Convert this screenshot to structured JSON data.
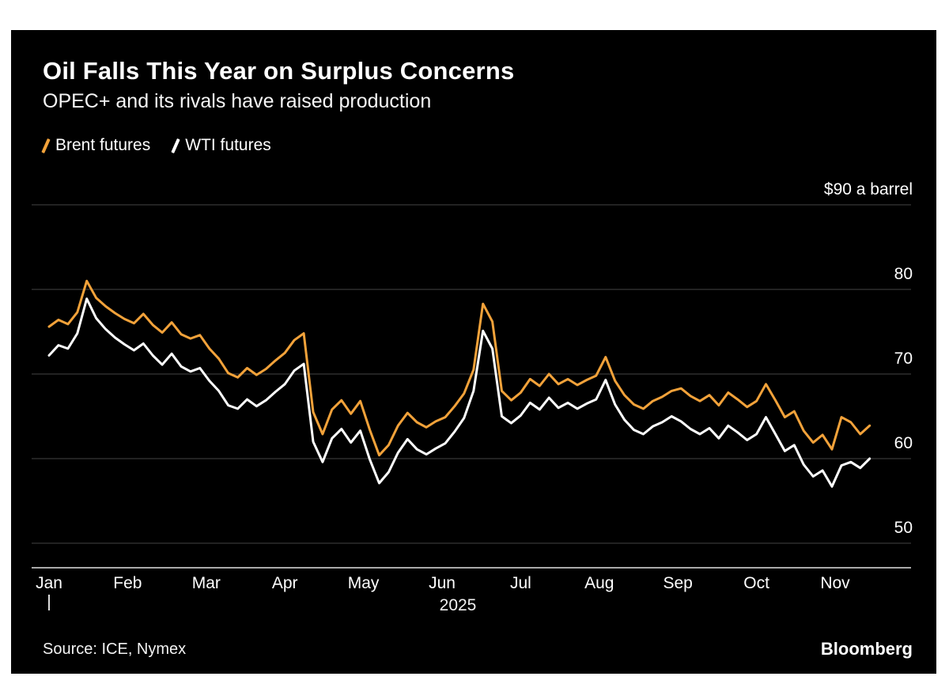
{
  "page": {
    "background": "#ffffff",
    "card_background": "#000000",
    "text_color": "#ffffff"
  },
  "header": {
    "title": "Oil Falls This Year on Surplus Concerns",
    "subtitle": "OPEC+ and its rivals have raised production"
  },
  "legend": {
    "items": [
      {
        "id": "brent",
        "label": "Brent futures",
        "color": "#F2A23A",
        "icon": "slash-line-icon"
      },
      {
        "id": "wti",
        "label": "WTI futures",
        "color": "#FFFFFF",
        "icon": "slash-line-icon"
      }
    ]
  },
  "footer": {
    "source": "Source: ICE, Nymex",
    "brand": "Bloomberg"
  },
  "chart_data": {
    "type": "line",
    "title": "Oil Falls This Year on Surplus Concerns",
    "subtitle": "OPEC+ and its rivals have raised production",
    "legend_position": "top-left",
    "style": {
      "background": "#000000",
      "grid_color": "#454545",
      "axis_color": "#a9a9a9",
      "label_color": "#ffffff"
    },
    "x_axis": {
      "tick_labels": [
        "Jan",
        "Feb",
        "Mar",
        "Apr",
        "May",
        "Jun",
        "Jul",
        "Aug",
        "Sep",
        "Oct",
        "Nov"
      ],
      "tick_positions_months": [
        0,
        1,
        2,
        3,
        4,
        5,
        6,
        7,
        8,
        9,
        10
      ],
      "year_label": "2025",
      "range_months": [
        0,
        11.2
      ]
    },
    "y_axis": {
      "unit_top_label": "$90 a barrel",
      "tick_values": [
        90,
        80,
        70,
        60,
        50
      ],
      "tick_labels": [
        "$90 a barrel",
        "80",
        "70",
        "60",
        "50"
      ],
      "ylim": [
        47,
        91
      ],
      "grid": true
    },
    "x_start_month": 0,
    "x_step_month": 0.12,
    "x_unit": "months since Jan 1 2025",
    "y_unit": "USD per barrel",
    "series": [
      {
        "id": "brent",
        "name": "Brent futures",
        "color": "#F2A23A",
        "values": [
          75.6,
          76.4,
          75.9,
          77.3,
          81.0,
          79.0,
          78.0,
          77.2,
          76.5,
          76.0,
          77.1,
          75.8,
          74.9,
          76.1,
          74.7,
          74.2,
          74.6,
          73.0,
          71.8,
          70.1,
          69.6,
          70.7,
          69.9,
          70.6,
          71.6,
          72.5,
          74.0,
          74.8,
          65.5,
          62.9,
          65.8,
          66.9,
          65.3,
          66.8,
          63.4,
          60.4,
          61.6,
          63.9,
          65.4,
          64.3,
          63.7,
          64.4,
          64.9,
          66.2,
          67.7,
          70.5,
          78.3,
          76.2,
          68.0,
          66.9,
          67.8,
          69.4,
          68.6,
          70.0,
          68.8,
          69.4,
          68.7,
          69.3,
          69.8,
          72.0,
          69.2,
          67.5,
          66.4,
          65.9,
          66.8,
          67.3,
          68.0,
          68.3,
          67.4,
          66.8,
          67.5,
          66.3,
          67.8,
          67.0,
          66.1,
          66.8,
          68.8,
          66.9,
          64.9,
          65.6,
          63.3,
          61.9,
          62.8,
          61.1,
          64.9,
          64.3,
          62.9,
          63.9
        ]
      },
      {
        "id": "wti",
        "name": "WTI futures",
        "color": "#FFFFFF",
        "values": [
          72.2,
          73.4,
          73.0,
          74.8,
          78.9,
          76.6,
          75.3,
          74.3,
          73.5,
          72.8,
          73.6,
          72.2,
          71.1,
          72.4,
          70.9,
          70.3,
          70.7,
          69.2,
          68.0,
          66.3,
          65.9,
          67.0,
          66.2,
          66.9,
          67.9,
          68.8,
          70.4,
          71.2,
          62.0,
          59.6,
          62.4,
          63.5,
          61.9,
          63.3,
          59.9,
          57.1,
          58.4,
          60.7,
          62.3,
          61.1,
          60.5,
          61.2,
          61.8,
          63.2,
          64.8,
          68.0,
          75.1,
          73.0,
          65.0,
          64.2,
          65.1,
          66.6,
          65.8,
          67.2,
          66.0,
          66.6,
          65.9,
          66.5,
          67.0,
          69.3,
          66.4,
          64.6,
          63.4,
          62.9,
          63.8,
          64.3,
          65.0,
          64.4,
          63.5,
          62.9,
          63.6,
          62.4,
          63.9,
          63.1,
          62.2,
          62.9,
          64.9,
          62.9,
          60.9,
          61.6,
          59.3,
          57.9,
          58.6,
          56.7,
          59.2,
          59.6,
          58.9,
          60.0
        ]
      }
    ]
  }
}
